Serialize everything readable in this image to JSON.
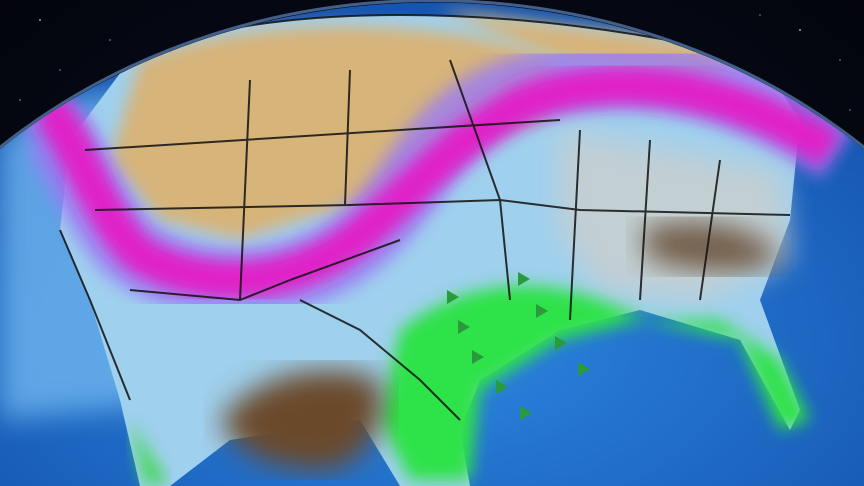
{
  "map": {
    "region": "",
    "colors": {
      "space": "#05070d",
      "ocean": "#1f6fd0",
      "ocean_light": "#4fa6ee",
      "dry_land": "#d7b47a",
      "jet_core": "#e020c8",
      "jet_edge": "#b06cf0",
      "cold_band": "#7fc6f2",
      "gray_band": "#c8cfd0",
      "brown": "#6b4a2c",
      "green": "#2fe24a",
      "borders": "#111111"
    },
    "markers": {
      "icon": "green-triangle-icon",
      "color": "#2a9a3a"
    }
  }
}
